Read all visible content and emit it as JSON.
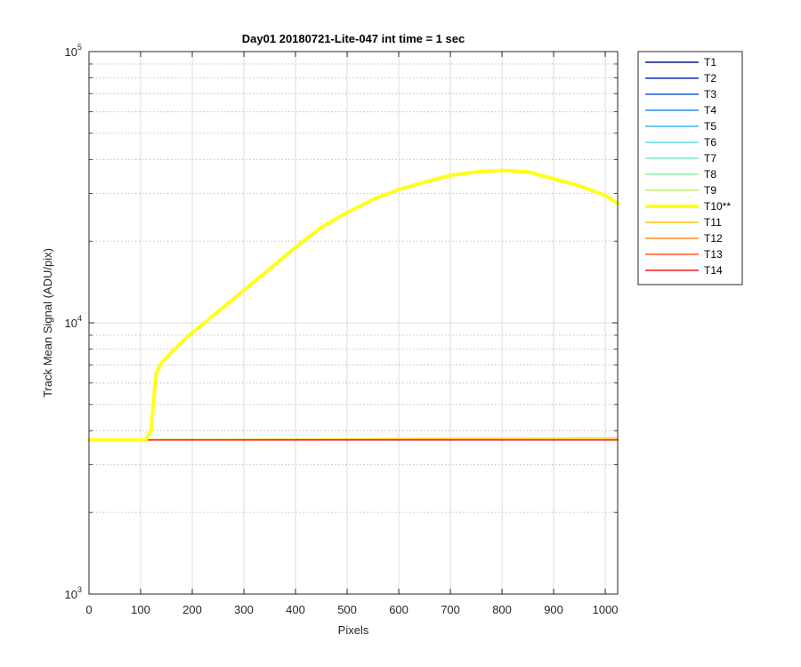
{
  "chart_data": {
    "type": "line",
    "title": "Day01 20180721-Lite-047 int time = 1 sec",
    "xlabel": "Pixels",
    "ylabel": "Track Mean Signal (ADU/pix)",
    "xlim": [
      0,
      1024
    ],
    "ylim": [
      1000,
      100000
    ],
    "yscale": "log",
    "grid": true,
    "minor_grid": true,
    "legend_position": "outside-top-right",
    "x_ticks": [
      "0",
      "100",
      "200",
      "300",
      "400",
      "500",
      "600",
      "700",
      "800",
      "900",
      "1000"
    ],
    "y_ticks": [
      {
        "base": "10",
        "exp": "3",
        "value": 1000
      },
      {
        "base": "10",
        "exp": "4",
        "value": 10000
      },
      {
        "base": "10",
        "exp": "5",
        "value": 100000
      }
    ],
    "series": [
      {
        "name": "T1",
        "color": "#0a1a7a",
        "highlight": false,
        "x": [
          0,
          1024
        ],
        "y": [
          3700,
          3700
        ]
      },
      {
        "name": "T2",
        "color": "#0f2fb4",
        "highlight": false,
        "x": [
          0,
          1024
        ],
        "y": [
          3700,
          3700
        ]
      },
      {
        "name": "T3",
        "color": "#1f5cd8",
        "highlight": false,
        "x": [
          0,
          1024
        ],
        "y": [
          3700,
          3700
        ]
      },
      {
        "name": "T4",
        "color": "#2e8ee8",
        "highlight": false,
        "x": [
          0,
          1024
        ],
        "y": [
          3700,
          3700
        ]
      },
      {
        "name": "T5",
        "color": "#3cbcf2",
        "highlight": false,
        "x": [
          0,
          1024
        ],
        "y": [
          3700,
          3700
        ]
      },
      {
        "name": "T6",
        "color": "#4ee6ea",
        "highlight": false,
        "x": [
          0,
          1024
        ],
        "y": [
          3700,
          3700
        ]
      },
      {
        "name": "T7",
        "color": "#78ecc8",
        "highlight": false,
        "x": [
          0,
          1024
        ],
        "y": [
          3700,
          3700
        ]
      },
      {
        "name": "T8",
        "color": "#8ef09e",
        "highlight": false,
        "x": [
          0,
          1024
        ],
        "y": [
          3700,
          3700
        ]
      },
      {
        "name": "T9",
        "color": "#bdf46e",
        "highlight": false,
        "x": [
          0,
          1024
        ],
        "y": [
          3700,
          3700
        ]
      },
      {
        "name": "T10**",
        "color": "#ffff1a",
        "highlight": true,
        "x": [
          0,
          110,
          120,
          130,
          140,
          160,
          180,
          200,
          250,
          300,
          350,
          400,
          450,
          500,
          550,
          600,
          650,
          700,
          750,
          800,
          850,
          900,
          950,
          1000,
          1024
        ],
        "y": [
          3700,
          3700,
          4000,
          6500,
          7100,
          7800,
          8500,
          9200,
          11000,
          13200,
          15800,
          19000,
          22500,
          25500,
          28500,
          31000,
          33000,
          35000,
          36000,
          36500,
          36000,
          34000,
          32000,
          29500,
          27500
        ]
      },
      {
        "name": "T11",
        "color": "#ffc10e",
        "highlight": false,
        "x": [
          0,
          1024
        ],
        "y": [
          3705,
          3760
        ]
      },
      {
        "name": "T12",
        "color": "#ff8c1a",
        "highlight": false,
        "x": [
          0,
          1024
        ],
        "y": [
          3700,
          3700
        ]
      },
      {
        "name": "T13",
        "color": "#ff5a1f",
        "highlight": false,
        "x": [
          0,
          1024
        ],
        "y": [
          3700,
          3700
        ]
      },
      {
        "name": "T14",
        "color": "#ee1c1c",
        "highlight": false,
        "x": [
          0,
          1024
        ],
        "y": [
          3700,
          3700
        ]
      }
    ]
  }
}
